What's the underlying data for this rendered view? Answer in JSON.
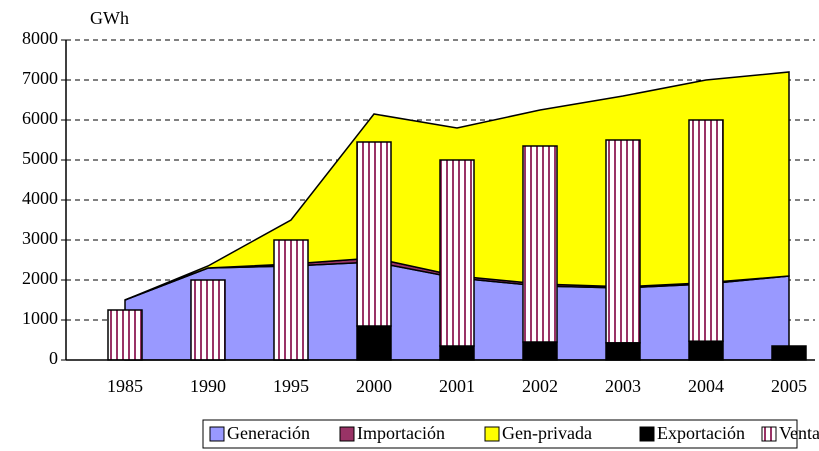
{
  "chart_data": {
    "type": "combo",
    "y_label": "GWh",
    "categories": [
      "1985",
      "1990",
      "1995",
      "2000",
      "2001",
      "2002",
      "2003",
      "2004",
      "2005"
    ],
    "series": [
      {
        "name": "Generación",
        "type": "area",
        "color": "#9999ff",
        "values": [
          1500,
          2300,
          2350,
          2450,
          2050,
          1850,
          1800,
          1900,
          2100
        ]
      },
      {
        "name": "Importación",
        "type": "area",
        "color": "#993366",
        "values": [
          0,
          0,
          50,
          100,
          50,
          50,
          30,
          30,
          0
        ]
      },
      {
        "name": "Gen-privada",
        "type": "area",
        "color": "#ffff00",
        "values": [
          0,
          50,
          1100,
          3600,
          3700,
          4350,
          4770,
          5070,
          5100
        ]
      },
      {
        "name": "Exportación",
        "type": "bar",
        "color": "#000000",
        "values": [
          0,
          0,
          0,
          850,
          350,
          450,
          430,
          470,
          350
        ]
      },
      {
        "name": "Ventas",
        "type": "bar",
        "color": "#993366",
        "values": [
          1250,
          2000,
          3000,
          4600,
          4650,
          4900,
          5070,
          5530,
          0
        ]
      }
    ],
    "ylim": [
      0,
      8000
    ],
    "yticks": [
      0,
      1000,
      2000,
      3000,
      4000,
      5000,
      6000,
      7000,
      8000
    ],
    "grid": true,
    "legend": "bottom"
  }
}
